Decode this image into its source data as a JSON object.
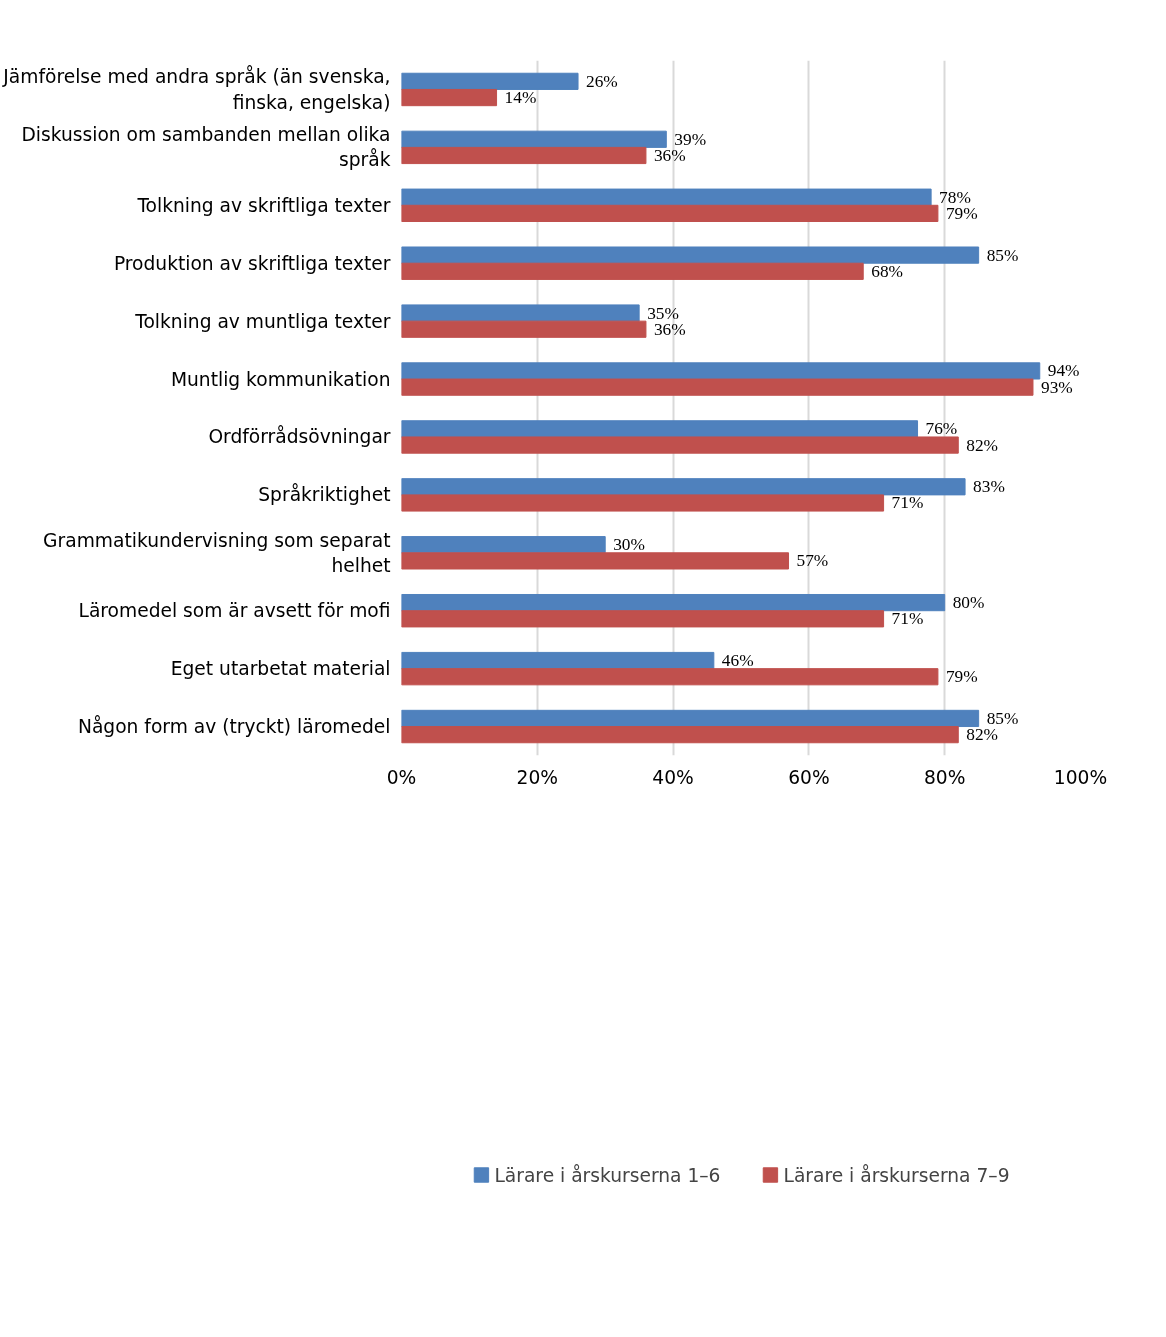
{
  "chart_data": {
    "type": "bar",
    "orientation": "horizontal",
    "categories": [
      "Jämförelse med andra språk (än svenska, finska, engelska)",
      "Diskussion om sambanden mellan olika språk",
      "Tolkning av skriftliga texter",
      "Produktion av skriftliga texter",
      "Tolkning av muntliga texter",
      "Muntlig kommunikation",
      "Ordförrådsövningar",
      "Språkriktighet",
      "Grammatikundervisning som separat helhet",
      "Läromedel som är avsett för mofi",
      "Eget utarbetat material",
      "Någon form av (tryckt) läromedel"
    ],
    "series": [
      {
        "name": "Lärare i årskurserna 1–6",
        "color": "#4f81bd",
        "values": [
          26,
          39,
          78,
          85,
          35,
          94,
          76,
          83,
          30,
          80,
          46,
          85
        ],
        "value_labels": [
          "26%",
          "39%",
          "78%",
          "85%",
          "35%",
          "94%",
          "76%",
          "83%",
          "30%",
          "80%",
          "46%",
          "85%"
        ]
      },
      {
        "name": "Lärare i årskurserna 7–9",
        "color": "#c0504d",
        "values": [
          14,
          36,
          79,
          68,
          36,
          93,
          82,
          71,
          57,
          71,
          79,
          82
        ],
        "value_labels": [
          "14%",
          "36%",
          "79%",
          "68%",
          "36%",
          "93%",
          "82%",
          "71%",
          "57%",
          "71%",
          "79%",
          "82%"
        ]
      }
    ],
    "xlim": [
      0,
      100
    ],
    "xticks": [
      {
        "value": 0,
        "label": "0%"
      },
      {
        "value": 20,
        "label": "20%"
      },
      {
        "value": 40,
        "label": "40%"
      },
      {
        "value": 60,
        "label": "60%"
      },
      {
        "value": 80,
        "label": "80%"
      },
      {
        "value": 100,
        "label": "100%"
      }
    ],
    "grid": "x",
    "legend": "bottom"
  }
}
